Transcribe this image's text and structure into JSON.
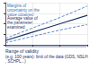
{
  "chart_data": {
    "type": "line",
    "x": [
      1,
      10,
      100,
      1000
    ],
    "series": [
      {
        "name": "Margins of uncertainty on the value obtained",
        "color": "#3a6fb5",
        "line_style": "dashed",
        "values": [
          15,
          40,
          65,
          92
        ]
      },
      {
        "name": "Average value of the parameter examined",
        "color": "#1a2f66",
        "line_style": "solid",
        "values": [
          10,
          30,
          50,
          70
        ]
      },
      {
        "name": "Margins of uncertainty on the value obtained",
        "color": "#3a6fb5",
        "line_style": "dashed",
        "values": [
          5,
          20,
          35,
          48
        ]
      }
    ],
    "annotations": [
      "Range of validity",
      "(e.g. 100 years): limit of the data (GDS, NSLH, SCHPL...)"
    ],
    "xlim": [
      1,
      1000
    ],
    "xticks": [
      1,
      10,
      100,
      1000
    ],
    "ylim": [
      0,
      100
    ],
    "yticks": [
      0,
      25,
      50,
      75,
      100
    ],
    "log": "x",
    "grid": true,
    "tick_labels": false
  }
}
